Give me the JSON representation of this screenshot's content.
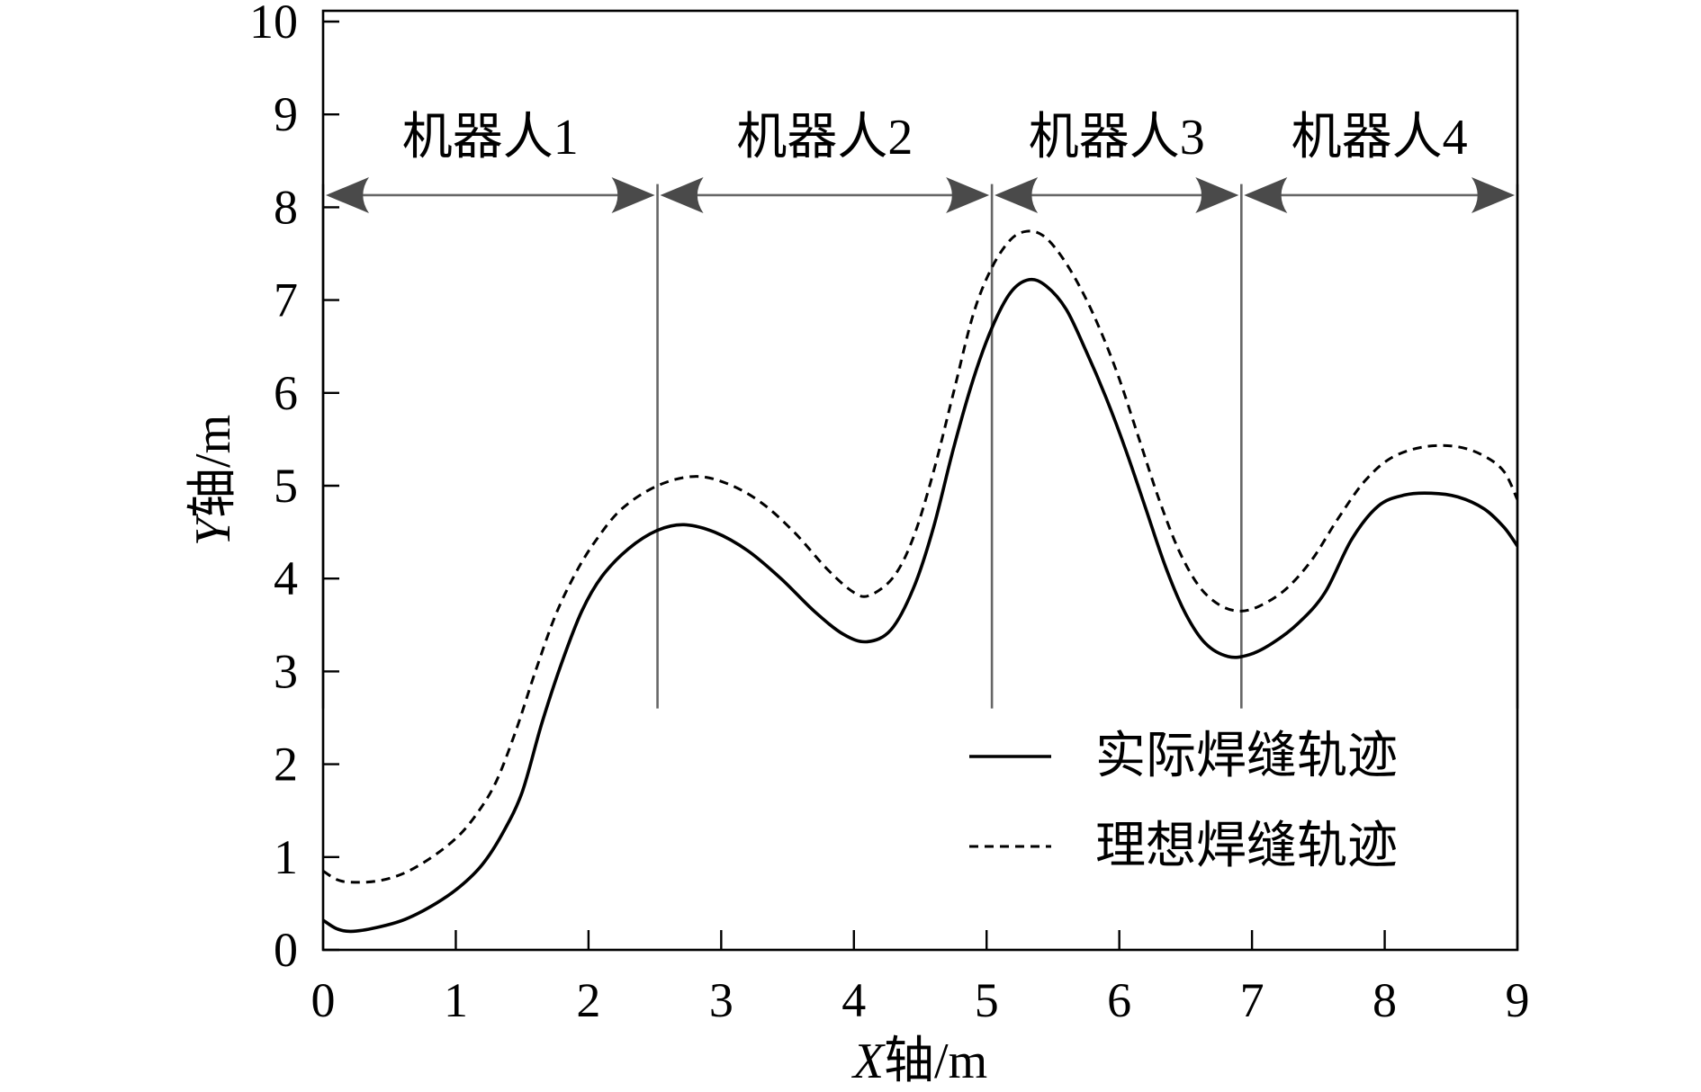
{
  "chart_data": {
    "type": "line",
    "title": "",
    "xlabel": "X轴/m",
    "ylabel": "Y轴/m",
    "xlim": [
      0,
      9
    ],
    "ylim": [
      0,
      10
    ],
    "x_ticks": [
      "0",
      "1",
      "2",
      "3",
      "4",
      "5",
      "6",
      "7",
      "8",
      "9"
    ],
    "y_ticks": [
      "0",
      "1",
      "2",
      "3",
      "4",
      "5",
      "6",
      "7",
      "8",
      "9",
      "10"
    ],
    "grid": false,
    "legend_position": "lower-right",
    "series": [
      {
        "name": "实际焊缝轨迹",
        "style": "solid",
        "color": "#000000",
        "x": [
          0,
          0.1,
          0.21,
          0.4,
          0.62,
          0.85,
          1.03,
          1.2,
          1.35,
          1.5,
          1.65,
          1.8,
          1.95,
          2.1,
          2.3,
          2.52,
          2.72,
          2.95,
          3.2,
          3.45,
          3.7,
          3.92,
          4.1,
          4.28,
          4.45,
          4.6,
          4.75,
          4.9,
          5.04,
          5.18,
          5.32,
          5.45,
          5.6,
          5.75,
          5.9,
          6.05,
          6.2,
          6.35,
          6.5,
          6.65,
          6.82,
          6.98,
          7.15,
          7.35,
          7.55,
          7.75,
          7.95,
          8.15,
          8.35,
          8.55,
          8.75,
          8.9,
          9.0
        ],
        "y": [
          0.32,
          0.23,
          0.2,
          0.24,
          0.33,
          0.5,
          0.68,
          0.92,
          1.25,
          1.7,
          2.45,
          3.1,
          3.65,
          4.02,
          4.32,
          4.52,
          4.58,
          4.5,
          4.3,
          4.0,
          3.65,
          3.4,
          3.32,
          3.45,
          3.9,
          4.55,
          5.4,
          6.15,
          6.7,
          7.08,
          7.22,
          7.15,
          6.9,
          6.45,
          5.95,
          5.38,
          4.75,
          4.12,
          3.62,
          3.3,
          3.16,
          3.18,
          3.3,
          3.52,
          3.85,
          4.42,
          4.78,
          4.9,
          4.92,
          4.88,
          4.75,
          4.55,
          4.35
        ]
      },
      {
        "name": "理想焊缝轨迹",
        "style": "dashed",
        "color": "#000000",
        "x": [
          0,
          0.1,
          0.2,
          0.4,
          0.6,
          0.8,
          1.0,
          1.15,
          1.3,
          1.45,
          1.6,
          1.75,
          1.9,
          2.05,
          2.25,
          2.52,
          2.8,
          3.05,
          3.3,
          3.55,
          3.8,
          4.0,
          4.12,
          4.3,
          4.45,
          4.6,
          4.75,
          4.9,
          5.04,
          5.18,
          5.3,
          5.42,
          5.55,
          5.7,
          5.85,
          6.0,
          6.15,
          6.3,
          6.45,
          6.6,
          6.75,
          6.9,
          7.05,
          7.25,
          7.45,
          7.65,
          7.85,
          8.05,
          8.3,
          8.55,
          8.75,
          8.9,
          9.0
        ],
        "y": [
          0.85,
          0.76,
          0.73,
          0.74,
          0.82,
          0.98,
          1.2,
          1.45,
          1.8,
          2.35,
          3.0,
          3.6,
          4.05,
          4.4,
          4.75,
          5.0,
          5.1,
          5.02,
          4.82,
          4.5,
          4.1,
          3.85,
          3.82,
          4.02,
          4.45,
          5.15,
          6.0,
          6.85,
          7.35,
          7.65,
          7.74,
          7.7,
          7.5,
          7.15,
          6.7,
          6.15,
          5.5,
          4.85,
          4.3,
          3.92,
          3.72,
          3.65,
          3.7,
          3.88,
          4.2,
          4.65,
          5.05,
          5.3,
          5.42,
          5.42,
          5.32,
          5.15,
          4.85
        ]
      }
    ],
    "annotations": {
      "boundaries": [
        0,
        2.52,
        5.04,
        6.92,
        9
      ],
      "labels": [
        "机器人1",
        "机器人2",
        "机器人3",
        "机器人4"
      ],
      "arrow_y": 8.13,
      "divider_y_range": [
        2.6,
        8.25
      ],
      "line_color": "#666666",
      "arrowhead_color": "#4a4a4a"
    }
  }
}
